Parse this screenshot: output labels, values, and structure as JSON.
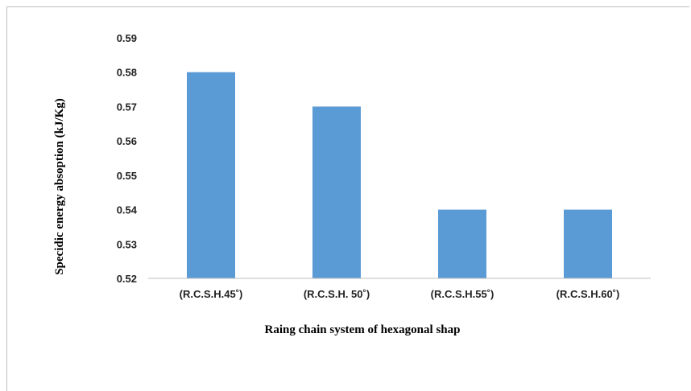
{
  "chart_data": {
    "type": "bar",
    "categories": [
      "(R.C.S.H.45˚)",
      "(R.C.S.H. 50˚)",
      "(R.C.S.H.55˚)",
      "(R.C.S.H.60˚)"
    ],
    "values": [
      0.58,
      0.57,
      0.54,
      0.54
    ],
    "xlabel": "Raing chain system of hexagonal shap",
    "ylabel": "Specidic energy absoption  (kJ/Kg)",
    "ylim": [
      0.52,
      0.59
    ],
    "yticks": [
      "0.52",
      "0.53",
      "0.54",
      "0.55",
      "0.56",
      "0.57",
      "0.58",
      "0.59"
    ],
    "grid": false,
    "legend": "none",
    "bar_color": "#5b9bd5"
  }
}
